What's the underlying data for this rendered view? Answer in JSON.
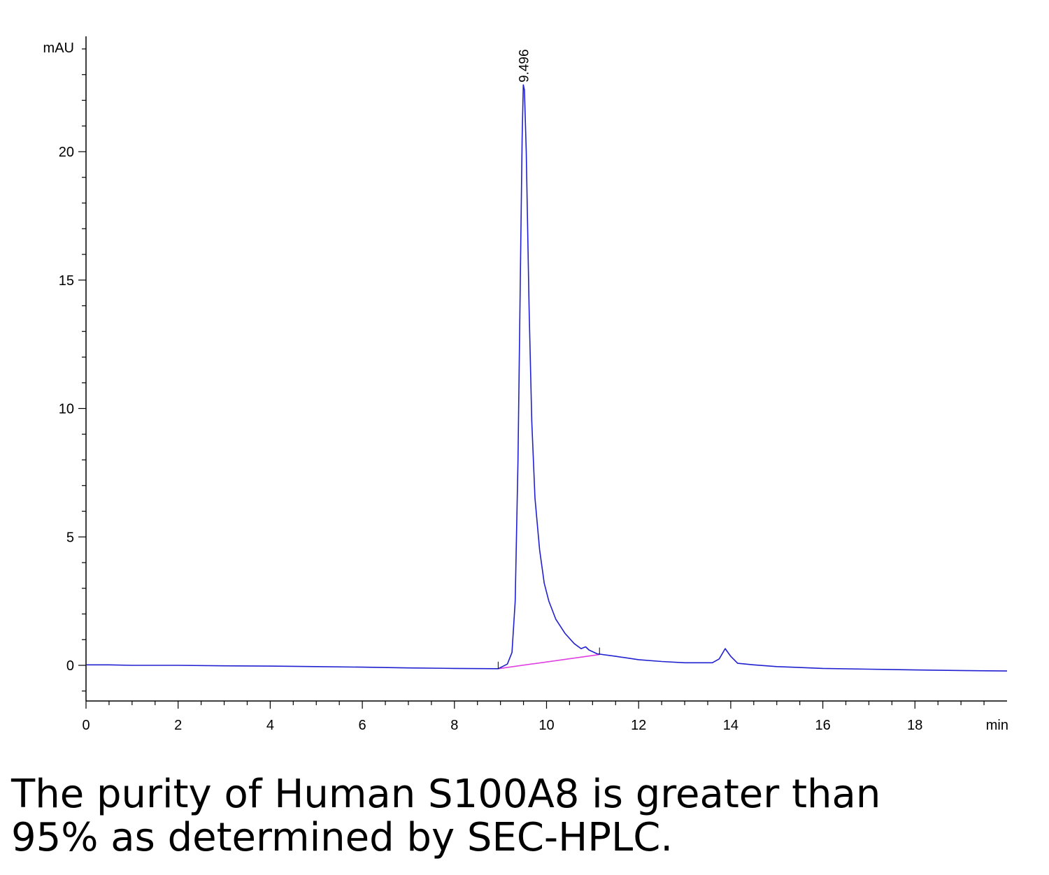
{
  "chart_data": {
    "type": "line",
    "ylabel": "mAU",
    "xlabel": "min",
    "xlim": [
      0,
      20
    ],
    "ylim": [
      -1.3,
      24.5
    ],
    "x_ticks": [
      0,
      2,
      4,
      6,
      8,
      10,
      12,
      14,
      16,
      18
    ],
    "y_ticks": [
      0,
      5,
      10,
      15,
      20
    ],
    "peak_label": "9.496",
    "colors": {
      "trace": "#2020d0",
      "baseline": "#e040e0",
      "axis": "#000000"
    },
    "series": [
      {
        "values": [
          [
            0,
            0.02
          ],
          [
            0.5,
            0.02
          ],
          [
            1,
            0.0
          ],
          [
            2,
            0.0
          ],
          [
            3,
            -0.02
          ],
          [
            4,
            -0.03
          ],
          [
            5,
            -0.05
          ],
          [
            6,
            -0.07
          ],
          [
            7,
            -0.1
          ],
          [
            8,
            -0.12
          ],
          [
            8.95,
            -0.13
          ],
          [
            9.15,
            0.05
          ],
          [
            9.25,
            0.5
          ],
          [
            9.32,
            2.5
          ],
          [
            9.38,
            8.0
          ],
          [
            9.43,
            15.0
          ],
          [
            9.47,
            20.5
          ],
          [
            9.496,
            22.6
          ],
          [
            9.52,
            22.4
          ],
          [
            9.56,
            20.0
          ],
          [
            9.62,
            14.0
          ],
          [
            9.68,
            9.5
          ],
          [
            9.75,
            6.5
          ],
          [
            9.85,
            4.5
          ],
          [
            9.95,
            3.2
          ],
          [
            10.05,
            2.5
          ],
          [
            10.2,
            1.8
          ],
          [
            10.4,
            1.25
          ],
          [
            10.6,
            0.85
          ],
          [
            10.75,
            0.65
          ],
          [
            10.85,
            0.72
          ],
          [
            10.92,
            0.6
          ],
          [
            11.1,
            0.45
          ],
          [
            11.5,
            0.35
          ],
          [
            12,
            0.22
          ],
          [
            12.5,
            0.15
          ],
          [
            13,
            0.1
          ],
          [
            13.6,
            0.1
          ],
          [
            13.75,
            0.25
          ],
          [
            13.88,
            0.65
          ],
          [
            14,
            0.35
          ],
          [
            14.15,
            0.08
          ],
          [
            14.5,
            0.02
          ],
          [
            15,
            -0.05
          ],
          [
            16,
            -0.12
          ],
          [
            17,
            -0.15
          ],
          [
            18,
            -0.18
          ],
          [
            19,
            -0.2
          ],
          [
            20,
            -0.22
          ]
        ]
      }
    ],
    "integration_baseline": [
      [
        8.95,
        -0.13
      ],
      [
        11.15,
        0.42
      ]
    ]
  },
  "caption": {
    "line1": "The purity of Human S100A8 is greater than",
    "line2": "95% as determined by SEC-HPLC."
  }
}
